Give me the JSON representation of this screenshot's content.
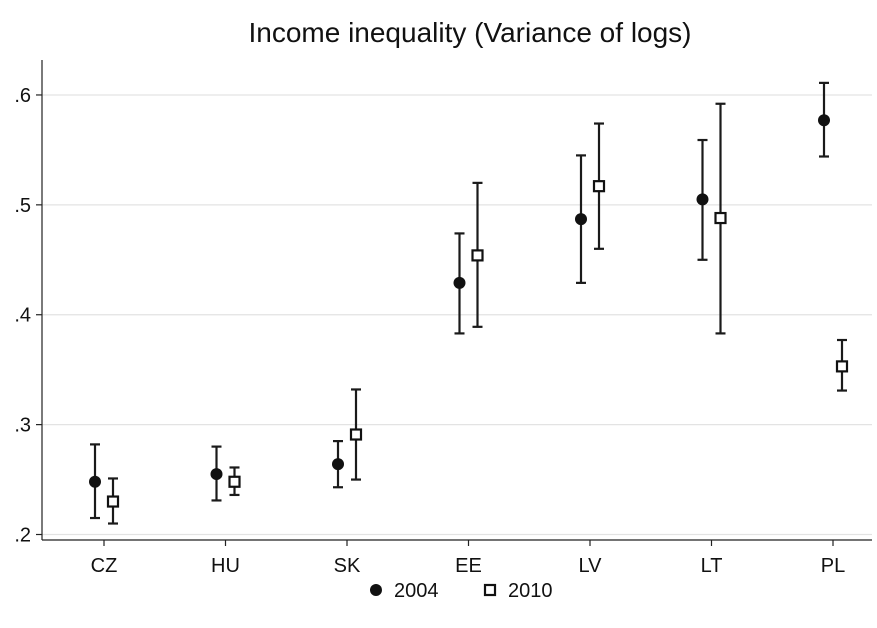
{
  "chart_data": {
    "type": "scatter",
    "title": "Income inequality (Variance of logs)",
    "xlabel": "",
    "ylabel": "",
    "categories": [
      "CZ",
      "HU",
      "SK",
      "EE",
      "LV",
      "LT",
      "PL"
    ],
    "ylim": [
      0.195,
      0.63
    ],
    "yticks": [
      0.2,
      0.3,
      0.4,
      0.5,
      0.6
    ],
    "ytick_labels": [
      ".2",
      ".3",
      ".4",
      ".5",
      ".6"
    ],
    "grid": true,
    "legend_position": "bottom",
    "series": [
      {
        "name": "2004",
        "marker": "filled-circle",
        "color": "#111111",
        "values": [
          0.248,
          0.255,
          0.264,
          0.429,
          0.487,
          0.505,
          0.577
        ],
        "lower": [
          0.215,
          0.231,
          0.243,
          0.383,
          0.429,
          0.45,
          0.544
        ],
        "upper": [
          0.282,
          0.28,
          0.285,
          0.474,
          0.545,
          0.559,
          0.611
        ]
      },
      {
        "name": "2010",
        "marker": "hollow-square",
        "color": "#111111",
        "values": [
          0.23,
          0.248,
          0.291,
          0.454,
          0.517,
          0.488,
          0.353
        ],
        "lower": [
          0.21,
          0.236,
          0.25,
          0.389,
          0.46,
          0.383,
          0.331
        ],
        "upper": [
          0.251,
          0.261,
          0.332,
          0.52,
          0.574,
          0.592,
          0.377
        ]
      }
    ]
  }
}
